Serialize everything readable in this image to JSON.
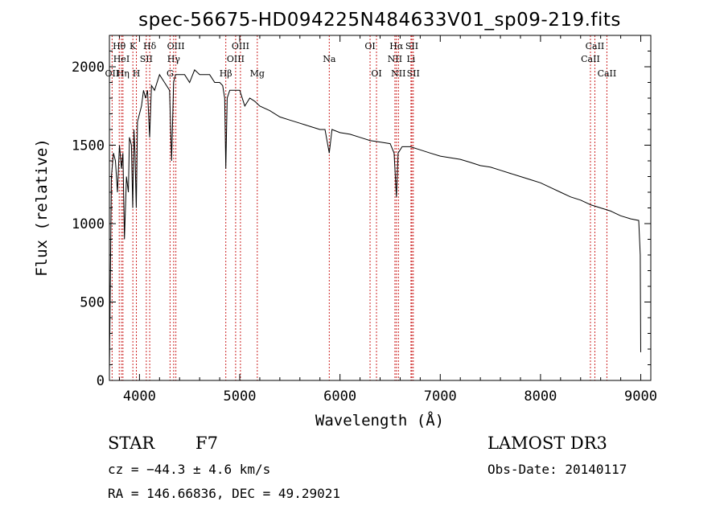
{
  "chart_data": {
    "type": "line",
    "title": "spec-56675-HD094225N484633V01_sp09-219.fits",
    "xlabel": "Wavelength (Å)",
    "ylabel": "Flux (relative)",
    "xlim": [
      3700,
      9100
    ],
    "ylim": [
      0,
      2200
    ],
    "xticks": [
      4000,
      5000,
      6000,
      7000,
      8000,
      9000
    ],
    "xtick_labels": [
      "4000",
      "5000",
      "6000",
      "7000",
      "8000",
      "9000"
    ],
    "yticks": [
      0,
      500,
      1000,
      1500,
      2000
    ],
    "ytick_labels": [
      "0",
      "500",
      "1000",
      "1500",
      "2000"
    ],
    "series": [
      {
        "name": "spectrum",
        "x": [
          3700,
          3720,
          3740,
          3760,
          3780,
          3800,
          3820,
          3835,
          3850,
          3870,
          3889,
          3900,
          3920,
          3933,
          3945,
          3955,
          3968,
          3980,
          4000,
          4020,
          4040,
          4060,
          4080,
          4101,
          4120,
          4150,
          4200,
          4250,
          4300,
          4320,
          4340,
          4360,
          4380,
          4400,
          4450,
          4500,
          4550,
          4600,
          4650,
          4700,
          4750,
          4800,
          4830,
          4850,
          4861,
          4875,
          4900,
          4950,
          5000,
          5050,
          5100,
          5150,
          5200,
          5300,
          5400,
          5500,
          5600,
          5700,
          5800,
          5850,
          5893,
          5920,
          6000,
          6100,
          6200,
          6300,
          6400,
          6500,
          6540,
          6563,
          6580,
          6620,
          6700,
          6800,
          6900,
          7000,
          7100,
          7200,
          7300,
          7400,
          7500,
          7600,
          7700,
          7800,
          7900,
          8000,
          8100,
          8200,
          8300,
          8400,
          8500,
          8600,
          8700,
          8800,
          8900,
          8980,
          8995,
          9000
        ],
        "y": [
          50,
          1300,
          1450,
          1400,
          1200,
          1500,
          1350,
          1450,
          900,
          1300,
          1200,
          1550,
          1500,
          1100,
          1600,
          1450,
          1100,
          1650,
          1700,
          1750,
          1850,
          1800,
          1850,
          1550,
          1880,
          1850,
          1950,
          1900,
          1850,
          1400,
          1900,
          1950,
          1950,
          1950,
          1950,
          1900,
          1980,
          1950,
          1950,
          1950,
          1900,
          1900,
          1880,
          1800,
          1350,
          1800,
          1850,
          1850,
          1850,
          1750,
          1800,
          1780,
          1750,
          1720,
          1680,
          1660,
          1640,
          1620,
          1600,
          1600,
          1450,
          1600,
          1580,
          1570,
          1550,
          1530,
          1520,
          1510,
          1450,
          1170,
          1450,
          1490,
          1490,
          1470,
          1450,
          1430,
          1420,
          1410,
          1390,
          1370,
          1360,
          1340,
          1320,
          1300,
          1280,
          1260,
          1230,
          1200,
          1170,
          1150,
          1120,
          1100,
          1080,
          1050,
          1030,
          1020,
          800,
          180
        ]
      }
    ],
    "spectral_lines": [
      {
        "label": "Hθ",
        "wavelength": 3798,
        "row": 0
      },
      {
        "label": "HeI",
        "wavelength": 3820,
        "row": 1
      },
      {
        "label": "OII",
        "wavelength": 3727,
        "row": 2
      },
      {
        "label": "Hη",
        "wavelength": 3835,
        "row": 2
      },
      {
        "label": "K",
        "wavelength": 3934,
        "row": 0
      },
      {
        "label": "SII",
        "wavelength": 4068,
        "row": 1
      },
      {
        "label": "H",
        "wavelength": 3969,
        "row": 2
      },
      {
        "label": "Hδ",
        "wavelength": 4102,
        "row": 0
      },
      {
        "label": "OIII",
        "wavelength": 4363,
        "row": 0
      },
      {
        "label": "Hγ",
        "wavelength": 4341,
        "row": 1
      },
      {
        "label": "G",
        "wavelength": 4305,
        "row": 2
      },
      {
        "label": "OIII",
        "wavelength": 5007,
        "row": 0
      },
      {
        "label": "OIII",
        "wavelength": 4959,
        "row": 1
      },
      {
        "label": "Hβ",
        "wavelength": 4861,
        "row": 2
      },
      {
        "label": "Mg",
        "wavelength": 5175,
        "row": 2
      },
      {
        "label": "Na",
        "wavelength": 5893,
        "row": 1
      },
      {
        "label": "OI",
        "wavelength": 6300,
        "row": 0
      },
      {
        "label": "OI",
        "wavelength": 6364,
        "row": 2
      },
      {
        "label": "Hα",
        "wavelength": 6563,
        "row": 0
      },
      {
        "label": "SII",
        "wavelength": 6717,
        "row": 0
      },
      {
        "label": "NII",
        "wavelength": 6548,
        "row": 1
      },
      {
        "label": "Li",
        "wavelength": 6708,
        "row": 1
      },
      {
        "label": "NII",
        "wavelength": 6583,
        "row": 2
      },
      {
        "label": "SII",
        "wavelength": 6731,
        "row": 2
      },
      {
        "label": "CaII",
        "wavelength": 8542,
        "row": 0
      },
      {
        "label": "CaII",
        "wavelength": 8498,
        "row": 1
      },
      {
        "label": "CaII",
        "wavelength": 8662,
        "row": 2
      }
    ]
  },
  "footer": {
    "class_label": "STAR",
    "subclass": "F7",
    "survey": "LAMOST DR3",
    "cz": "cz = −44.3 ± 4.6 km/s",
    "obs_date": "Obs-Date: 20140117",
    "coords": "RA = 146.66836, DEC =  49.29021"
  }
}
